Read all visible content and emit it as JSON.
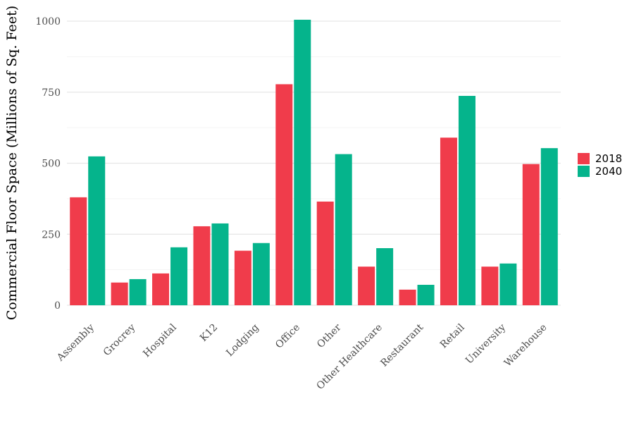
{
  "chart_data": {
    "type": "bar",
    "title": "",
    "xlabel": "",
    "ylabel": "Commercial Floor Space (Millions of Sq. Feet)",
    "ylim": [
      0,
      1000
    ],
    "yticks": [
      0,
      250,
      500,
      750,
      1000
    ],
    "grid": true,
    "legend_position": "right",
    "categories": [
      "Assembly",
      "Grocrey",
      "Hospital",
      "K12",
      "Lodging",
      "Office",
      "Other",
      "Other Healthcare",
      "Restaurant",
      "Retail",
      "University",
      "Warehouse"
    ],
    "series": [
      {
        "name": "2018",
        "color": "#F03C4B",
        "values": [
          380,
          80,
          112,
          278,
          192,
          778,
          365,
          136,
          55,
          590,
          136,
          497
        ]
      },
      {
        "name": "2040",
        "color": "#05B48C",
        "values": [
          524,
          92,
          204,
          288,
          219,
          1005,
          532,
          201,
          72,
          737,
          147,
          553
        ]
      }
    ]
  }
}
